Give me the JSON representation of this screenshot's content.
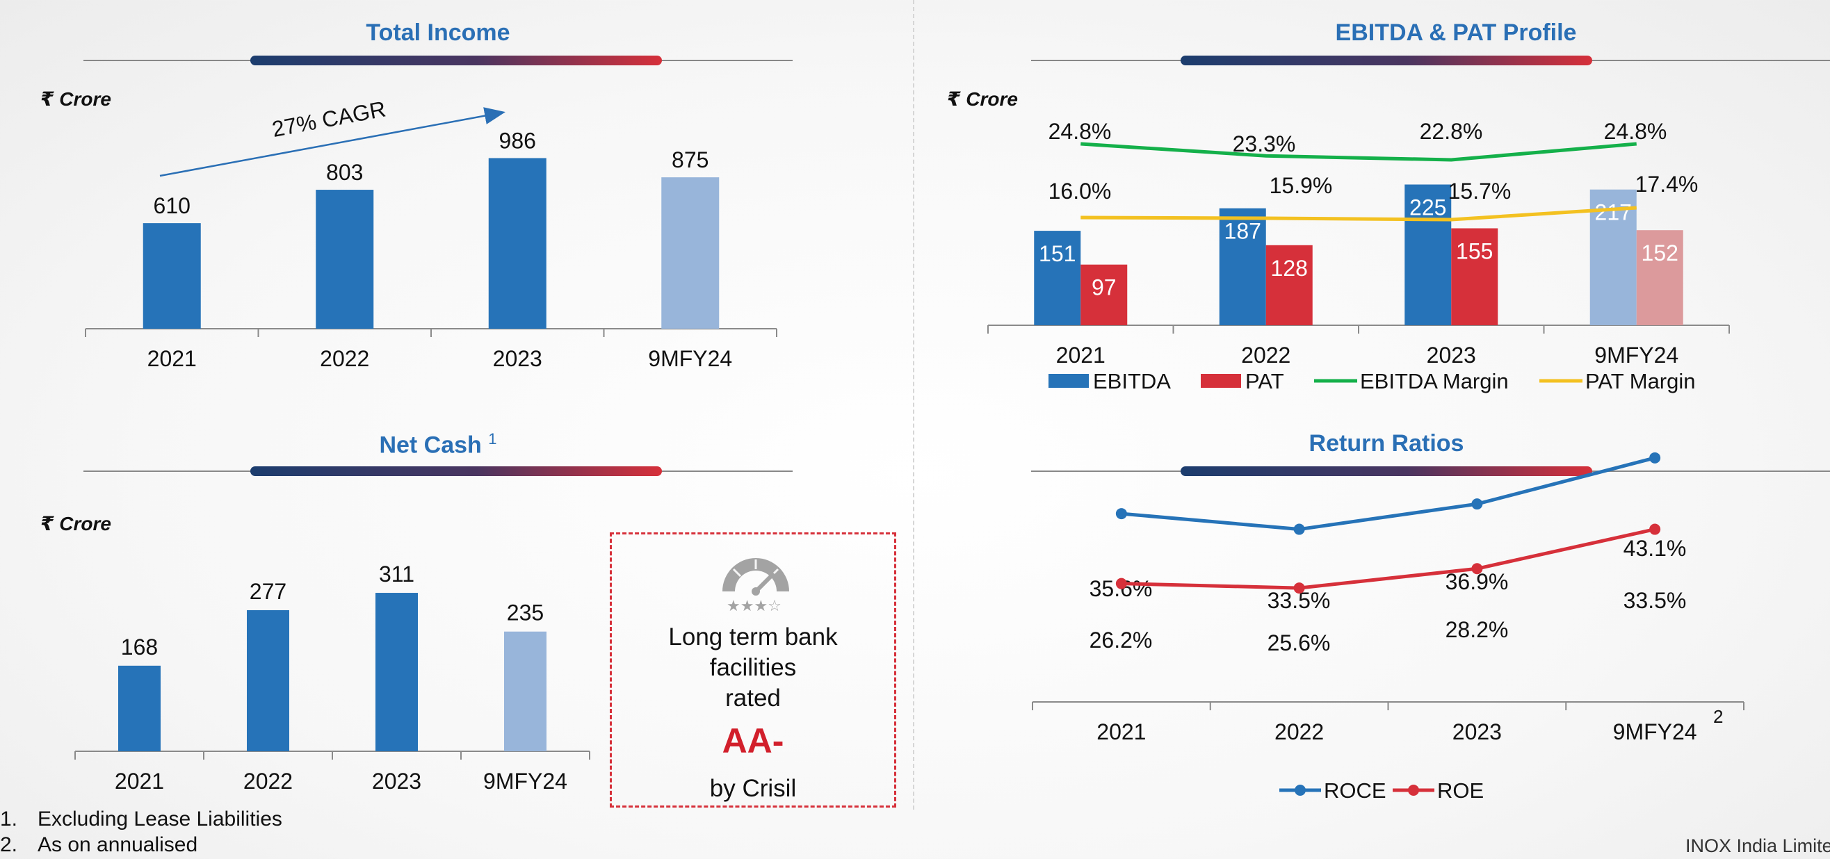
{
  "panels": {
    "total_income": {
      "title": "Total Income",
      "unit": "₹ Crore",
      "cagr_label": "27% CAGR"
    },
    "ebitda_pat": {
      "title": "EBITDA & PAT Profile",
      "unit": "₹ Crore"
    },
    "net_cash": {
      "title": "Net Cash",
      "title_sup": "1",
      "unit": "₹ Crore"
    },
    "return_ratios": {
      "title": "Return Ratios",
      "last_category_sup": "2"
    }
  },
  "rating": {
    "line1": "Long term bank",
    "line2": "facilities",
    "line3": "rated",
    "grade": "AA-",
    "agency": "by Crisil"
  },
  "footnotes": [
    {
      "num": "1.",
      "text": "Excluding Lease Liabilities"
    },
    {
      "num": "2.",
      "text": "As on annualised"
    }
  ],
  "brand": "INOX India Limited",
  "colors": {
    "blue": "#2673b8",
    "light_blue": "#98b5da",
    "red": "#d6303a",
    "light_red": "#dc9a9c",
    "green": "#14b04a",
    "yellow": "#f3c121",
    "title_blue": "#2a6fb5"
  },
  "chart_data": [
    {
      "id": "total_income",
      "type": "bar",
      "title": "Total Income",
      "ylabel": "₹ Crore",
      "categories": [
        "2021",
        "2022",
        "2023",
        "9MFY24"
      ],
      "values": [
        610,
        803,
        986,
        875
      ],
      "value_labels": [
        "610",
        "803",
        "986",
        "875"
      ],
      "ylim": [
        0,
        1170
      ],
      "annotation": "27% CAGR"
    },
    {
      "id": "ebitda_pat",
      "type": "bar",
      "title": "EBITDA & PAT Profile",
      "ylabel": "₹ Crore",
      "categories": [
        "2021",
        "2022",
        "2023",
        "9MFY24"
      ],
      "series": [
        {
          "name": "EBITDA",
          "values": [
            151,
            187,
            225,
            217
          ],
          "labels": [
            "151",
            "187",
            "225",
            "217"
          ]
        },
        {
          "name": "PAT",
          "values": [
            97,
            128,
            155,
            152
          ],
          "labels": [
            "97",
            "128",
            "155",
            "152"
          ]
        }
      ],
      "line_series": [
        {
          "name": "EBITDA Margin",
          "values": [
            24.8,
            23.3,
            22.8,
            24.8
          ],
          "labels": [
            "24.8%",
            "23.3%",
            "22.8%",
            "24.8%"
          ]
        },
        {
          "name": "PAT Margin",
          "values": [
            16.0,
            15.9,
            15.7,
            17.4
          ],
          "labels": [
            "16.0%",
            "15.9%",
            "15.7%",
            "17.4%"
          ]
        }
      ],
      "legend": [
        "EBITDA",
        "PAT",
        "EBITDA Margin",
        "PAT Margin"
      ],
      "legend_position": "bottom",
      "ylim": [
        0,
        240
      ]
    },
    {
      "id": "net_cash",
      "type": "bar",
      "title": "Net Cash",
      "ylabel": "₹ Crore",
      "categories": [
        "2021",
        "2022",
        "2023",
        "9MFY24"
      ],
      "values": [
        168,
        277,
        311,
        235
      ],
      "value_labels": [
        "168",
        "277",
        "311",
        "235"
      ],
      "ylim": [
        0,
        400
      ]
    },
    {
      "id": "return_ratios",
      "type": "line",
      "title": "Return Ratios",
      "categories": [
        "2021",
        "2022",
        "2023",
        "9MFY24"
      ],
      "series": [
        {
          "name": "ROCE",
          "values": [
            35.6,
            33.5,
            36.9,
            43.1
          ],
          "labels": [
            "35.6%",
            "33.5%",
            "36.9%",
            "43.1%"
          ]
        },
        {
          "name": "ROE",
          "values": [
            26.2,
            25.6,
            28.2,
            33.5
          ],
          "labels": [
            "26.2%",
            "25.6%",
            "28.2%",
            "33.5%"
          ]
        }
      ],
      "legend": [
        "ROCE",
        "ROE"
      ],
      "legend_position": "bottom"
    }
  ]
}
